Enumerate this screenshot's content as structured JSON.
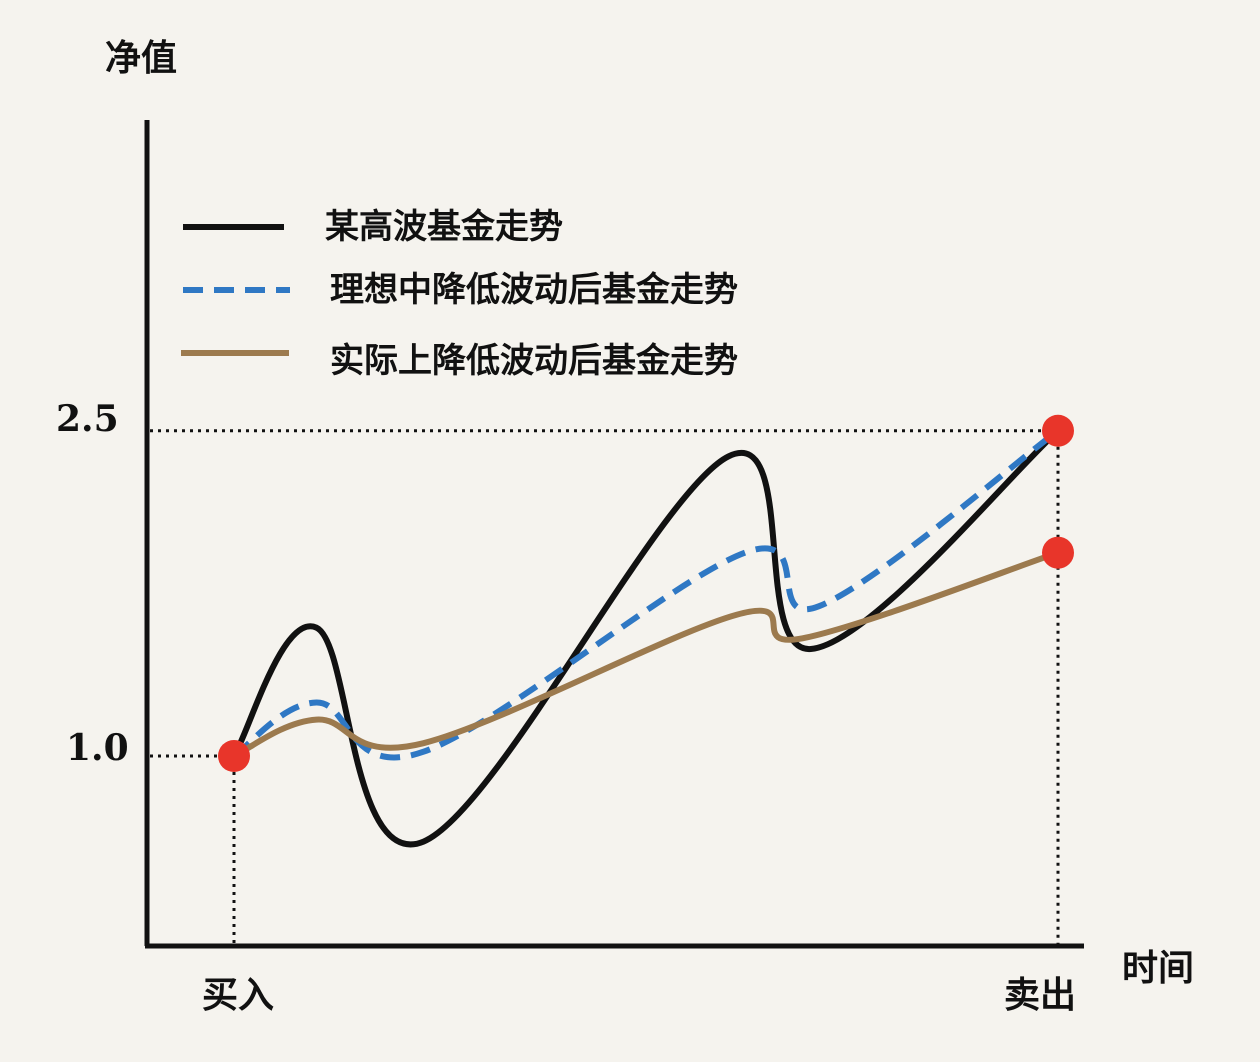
{
  "chart_data": {
    "type": "line",
    "ylabel": "净值",
    "xlabel": "时间",
    "y_ticks": [
      "2.5",
      "1.0"
    ],
    "y_tick_values": [
      2.5,
      1.0
    ],
    "x_ticks": [
      "买入",
      "卖出"
    ],
    "x_range": [
      0,
      1
    ],
    "ylim": [
      0.0,
      3.3
    ],
    "legend_position": "top-left",
    "grid": false,
    "series": [
      {
        "name": "某高波基金走势",
        "color": "#111111",
        "style": "solid",
        "x": [
          0,
          0.1,
          0.23,
          0.6,
          0.7,
          1.0
        ],
        "y": [
          1.0,
          1.6,
          0.6,
          2.4,
          1.5,
          2.52
        ]
      },
      {
        "name": "理想中降低波动后基金走势",
        "color": "#2f78c4",
        "style": "dashed",
        "x": [
          0,
          0.1,
          0.23,
          0.62,
          0.71,
          1.0
        ],
        "y": [
          1.0,
          1.25,
          1.02,
          1.95,
          1.7,
          2.52
        ]
      },
      {
        "name": "实际上降低波动后基金走势",
        "color": "#9c7a4e",
        "style": "solid",
        "x": [
          0,
          0.1,
          0.23,
          0.61,
          0.69,
          1.0
        ],
        "y": [
          1.0,
          1.17,
          1.06,
          1.66,
          1.55,
          1.95
        ]
      }
    ],
    "markers": [
      {
        "x": 0,
        "y": 1.0,
        "color": "#e8352a"
      },
      {
        "x": 1.0,
        "y": 2.52,
        "color": "#e8352a"
      },
      {
        "x": 1.0,
        "y": 1.95,
        "color": "#e8352a"
      }
    ]
  }
}
